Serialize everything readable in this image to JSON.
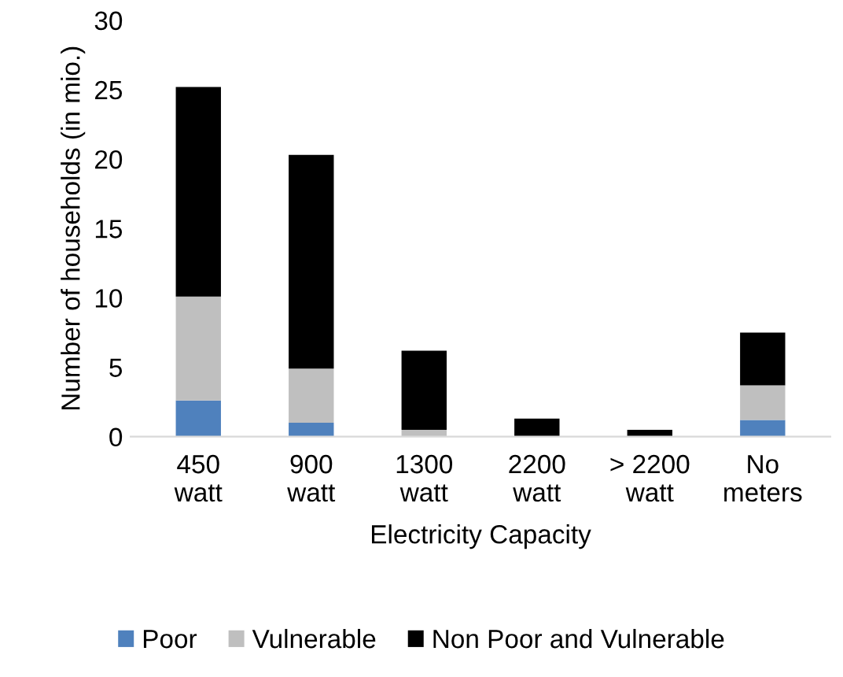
{
  "chart_data": {
    "type": "bar",
    "stacked": true,
    "xlabel": "Electricity Capacity",
    "ylabel": "Number of households (in mio.)",
    "categories": [
      "450\nwatt",
      "900\nwatt",
      "1300\nwatt",
      "2200\nwatt",
      "> 2200\nwatt",
      "No\nmeters"
    ],
    "series": [
      {
        "name": "Poor",
        "color": "#4f81bd",
        "values": [
          2.6,
          1.0,
          0,
          0,
          0,
          1.2
        ]
      },
      {
        "name": "Vulnerable",
        "color": "#bfbfbf",
        "values": [
          7.5,
          3.9,
          0.5,
          0,
          0,
          2.5
        ]
      },
      {
        "name": "Non Poor and Vulnerable",
        "color": "#000000",
        "values": [
          15.1,
          15.4,
          5.7,
          1.3,
          0.5,
          3.8
        ]
      }
    ],
    "ylim": [
      0,
      30
    ],
    "yticks": [
      0,
      5,
      10,
      15,
      20,
      25,
      30
    ],
    "grid": false,
    "legend": "bottom"
  }
}
